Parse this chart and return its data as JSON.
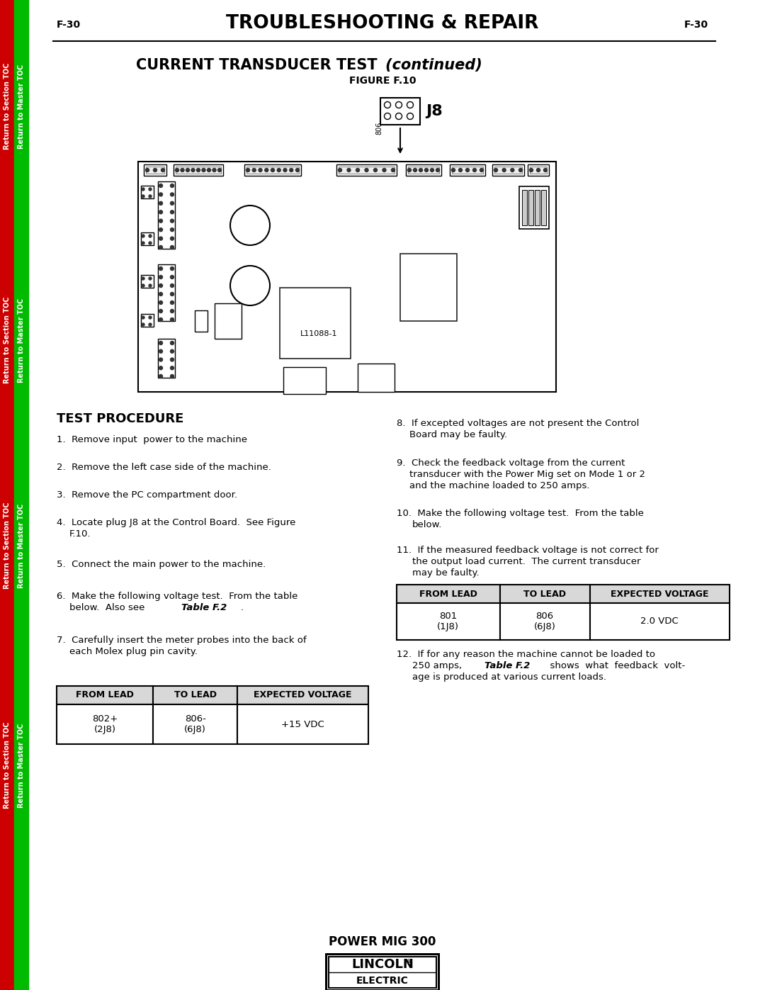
{
  "page_num": "F-30",
  "main_title": "TROUBLESHOOTING & REPAIR",
  "figure_label": "FIGURE F.10",
  "test_procedure_title": "TEST PROCEDURE",
  "table1_headers": [
    "FROM LEAD",
    "TO LEAD",
    "EXPECTED VOLTAGE"
  ],
  "table1_row_col1": "802+\n(2J8)",
  "table1_row_col2": "806-\n(6J8)",
  "table1_row_col3": "+15 VDC",
  "table2_headers": [
    "FROM LEAD",
    "TO LEAD",
    "EXPECTED VOLTAGE"
  ],
  "table2_row_col1": "801\n(1J8)",
  "table2_row_col2": "806\n(6J8)",
  "table2_row_col3": "2.0 VDC",
  "footer_text": "POWER MIG 300",
  "background_color": "#ffffff",
  "red_sidebar": "#cc0000",
  "green_sidebar": "#00bb00",
  "sidebar_text_red": "Return to Section TOC",
  "sidebar_text_green": "Return to Master TOC"
}
